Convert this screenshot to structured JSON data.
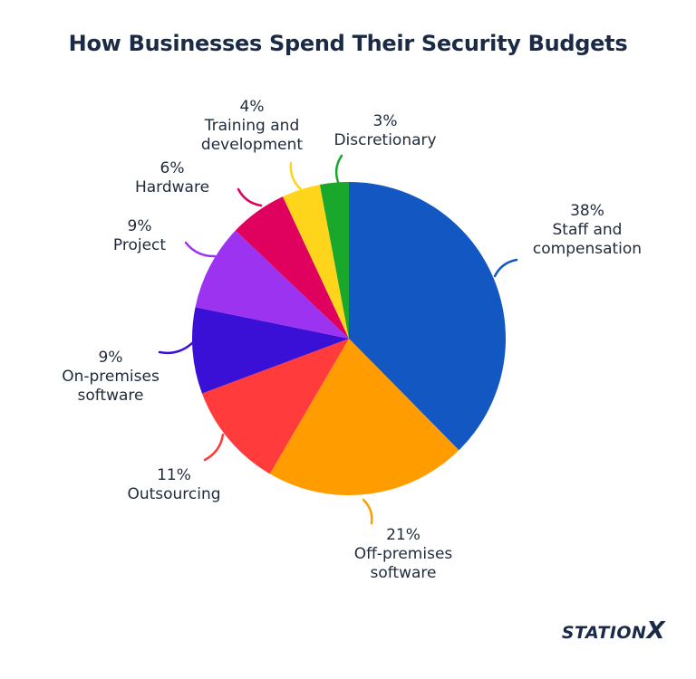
{
  "chart_data": {
    "type": "pie",
    "title": "How Businesses Spend Their Security Budgets",
    "start_angle_deg": 0,
    "direction": "clockwise",
    "slices": [
      {
        "pct_label": "38%",
        "value": 38,
        "label_lines": [
          "Staff and",
          "compensation"
        ],
        "color": "#1357c2"
      },
      {
        "pct_label": "21%",
        "value": 21,
        "label_lines": [
          "Off-premises",
          "software"
        ],
        "color": "#ff9c00"
      },
      {
        "pct_label": "11%",
        "value": 11,
        "label_lines": [
          "Outsourcing"
        ],
        "color": "#ff3b3b"
      },
      {
        "pct_label": "9%",
        "value": 9,
        "label_lines": [
          "On-premises",
          "software"
        ],
        "color": "#3a10d6"
      },
      {
        "pct_label": "9%",
        "value": 9,
        "label_lines": [
          "Project"
        ],
        "color": "#9b33f0"
      },
      {
        "pct_label": "6%",
        "value": 6,
        "label_lines": [
          "Hardware"
        ],
        "color": "#e0005e"
      },
      {
        "pct_label": "4%",
        "value": 4,
        "label_lines": [
          "Training and",
          "development"
        ],
        "color": "#ffd51c"
      },
      {
        "pct_label": "3%",
        "value": 3,
        "label_lines": [
          "Discretionary"
        ],
        "color": "#1aa82c"
      }
    ]
  },
  "brand": {
    "prefix": "STATION",
    "suffix": "X"
  }
}
